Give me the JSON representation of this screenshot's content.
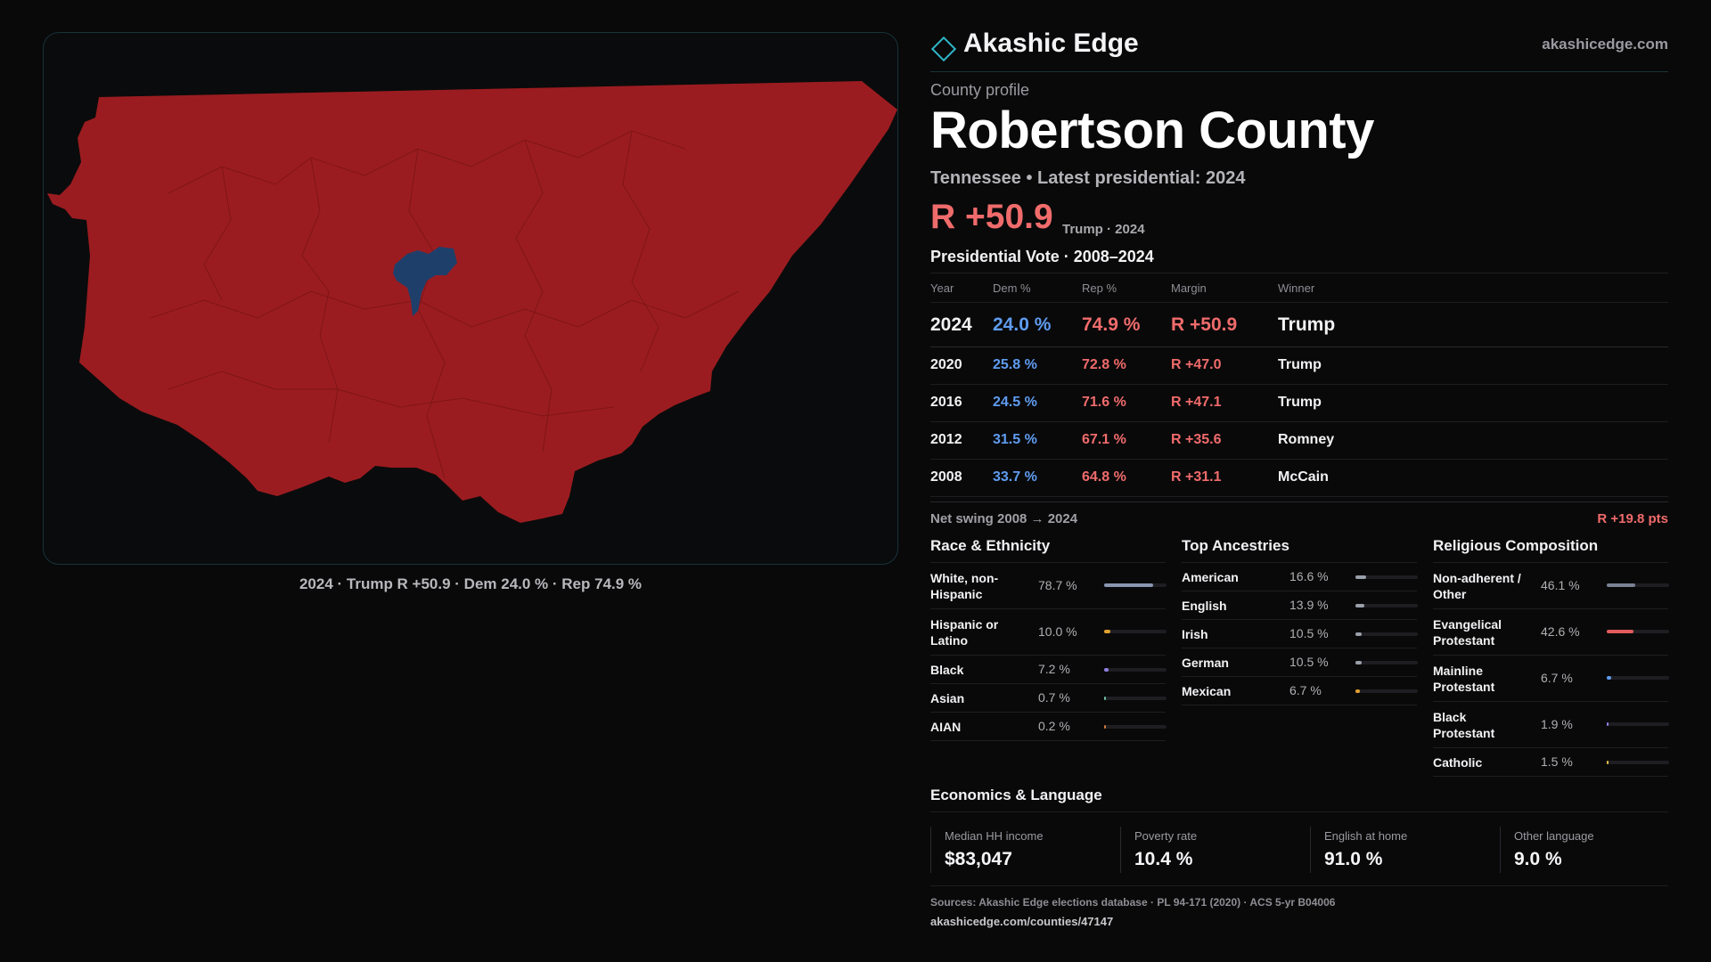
{
  "map": {
    "caption": "2024 · Trump R +50.9 · Dem 24.0 % · Rep 74.9 %",
    "colors": {
      "rep": "#9b1c20",
      "dem": "#1f3f6b",
      "border": "#17333a",
      "background": "#0a0b0c"
    }
  },
  "header": {
    "brand": "Akashic Edge",
    "brand_icon": "diamond-icon",
    "site": "akashicedge.com"
  },
  "profile": {
    "eyebrow": "County profile",
    "title": "Robertson County",
    "subtitle": "Tennessee • Latest presidential: 2024",
    "margin": "R +50.9",
    "margin_note": "Trump · 2024"
  },
  "presidential": {
    "title": "Presidential Vote · 2008–2024",
    "columns": [
      "Year",
      "Dem %",
      "Rep %",
      "Margin",
      "Winner"
    ],
    "rows": [
      {
        "year": "2024",
        "dem": "24.0 %",
        "rep": "74.9 %",
        "margin": "R +50.9",
        "winner": "Trump"
      },
      {
        "year": "2020",
        "dem": "25.8 %",
        "rep": "72.8 %",
        "margin": "R +47.0",
        "winner": "Trump"
      },
      {
        "year": "2016",
        "dem": "24.5 %",
        "rep": "71.6 %",
        "margin": "R +47.1",
        "winner": "Trump"
      },
      {
        "year": "2012",
        "dem": "31.5 %",
        "rep": "67.1 %",
        "margin": "R +35.6",
        "winner": "Romney"
      },
      {
        "year": "2008",
        "dem": "33.7 %",
        "rep": "64.8 %",
        "margin": "R +31.1",
        "winner": "McCain"
      }
    ],
    "swing_label": "Net swing 2008 → 2024",
    "swing_value": "R +19.8 pts"
  },
  "race": {
    "title": "Race & Ethnicity",
    "items": [
      {
        "name": "White, non-Hispanic",
        "pct": "78.7 %",
        "value": 78.7,
        "color": "#8a96b0"
      },
      {
        "name": "Hispanic or Latino",
        "pct": "10.0 %",
        "value": 10.0,
        "color": "#e0a030"
      },
      {
        "name": "Black",
        "pct": "7.2 %",
        "value": 7.2,
        "color": "#8f7fe0"
      },
      {
        "name": "Asian",
        "pct": "0.7 %",
        "value": 0.7,
        "color": "#6fbfa0"
      },
      {
        "name": "AIAN",
        "pct": "0.2 %",
        "value": 0.2,
        "color": "#d07a3a"
      }
    ]
  },
  "ancestry": {
    "title": "Top Ancestries",
    "items": [
      {
        "name": "American",
        "pct": "16.6 %",
        "value": 16.6,
        "color": "#9aa0aa"
      },
      {
        "name": "English",
        "pct": "13.9 %",
        "value": 13.9,
        "color": "#9aa0aa"
      },
      {
        "name": "Irish",
        "pct": "10.5 %",
        "value": 10.5,
        "color": "#9aa0aa"
      },
      {
        "name": "German",
        "pct": "10.5 %",
        "value": 10.5,
        "color": "#9aa0aa"
      },
      {
        "name": "Mexican",
        "pct": "6.7 %",
        "value": 6.7,
        "color": "#e0a030"
      }
    ]
  },
  "religion": {
    "title": "Religious Composition",
    "items": [
      {
        "name": "Non-adherent / Other",
        "pct": "46.1 %",
        "value": 46.1,
        "color": "#7a8294"
      },
      {
        "name": "Evangelical Protestant",
        "pct": "42.6 %",
        "value": 42.6,
        "color": "#e05c5c"
      },
      {
        "name": "Mainline Protestant",
        "pct": "6.7 %",
        "value": 6.7,
        "color": "#5f9cf0"
      },
      {
        "name": "Black Protestant",
        "pct": "1.9 %",
        "value": 1.9,
        "color": "#8f7fe0"
      },
      {
        "name": "Catholic",
        "pct": "1.5 %",
        "value": 1.5,
        "color": "#e0c040"
      }
    ]
  },
  "economics": {
    "title": "Economics & Language",
    "items": [
      {
        "label": "Median HH income",
        "value": "$83,047"
      },
      {
        "label": "Poverty rate",
        "value": "10.4 %"
      },
      {
        "label": "English at home",
        "value": "91.0 %"
      },
      {
        "label": "Other language",
        "value": "9.0 %"
      }
    ]
  },
  "footer": {
    "sources": "Sources: Akashic Edge elections database · PL 94-171 (2020) · ACS 5-yr B04006",
    "url": "akashicedge.com/counties/47147"
  }
}
